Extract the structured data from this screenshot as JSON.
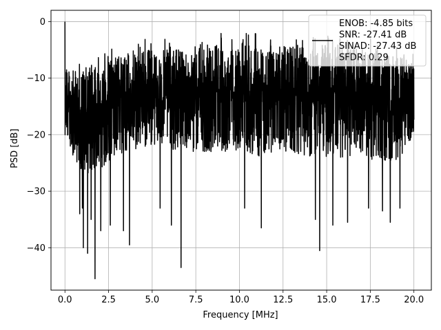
{
  "chart_data": {
    "type": "line",
    "xlabel": "Frequency [MHz]",
    "ylabel": "PSD [dB]",
    "xlim": [
      -0.8,
      21.0
    ],
    "ylim": [
      -47.5,
      2.0
    ],
    "x_ticks": [
      0.0,
      2.5,
      5.0,
      7.5,
      10.0,
      12.5,
      15.0,
      17.5,
      20.0
    ],
    "x_tick_labels": [
      "0.0",
      "2.5",
      "5.0",
      "7.5",
      "10.0",
      "12.5",
      "15.0",
      "17.5",
      "20.0"
    ],
    "y_ticks": [
      0,
      -10,
      -20,
      -30,
      -40
    ],
    "y_tick_labels": [
      "0",
      "−10",
      "−20",
      "−30",
      "−40"
    ],
    "grid": true,
    "legend_position": "top-right",
    "legend_entries": [
      "ENOB: -4.85 bits",
      "SNR: -27.41 dB",
      "SINAD: -27.43 dB",
      "SFDR: 0.29"
    ],
    "series": [
      {
        "color": "#000000",
        "x_start": 0.0,
        "x_end": 20.0,
        "band_upper": [
          [
            0.0,
            0.0
          ],
          [
            0.15,
            -6
          ],
          [
            0.4,
            -7
          ],
          [
            0.8,
            -7
          ],
          [
            1.2,
            -6
          ],
          [
            1.6,
            -6
          ],
          [
            2.0,
            -6
          ],
          [
            2.5,
            -5
          ],
          [
            3.0,
            -4
          ],
          [
            3.5,
            -4
          ],
          [
            4.0,
            -3
          ],
          [
            5.0,
            -3
          ],
          [
            6.0,
            -3
          ],
          [
            7.0,
            -3
          ],
          [
            8.0,
            -2
          ],
          [
            9.0,
            -2
          ],
          [
            10.0,
            -2
          ],
          [
            11.0,
            -2
          ],
          [
            12.0,
            -2
          ],
          [
            13.0,
            -2
          ],
          [
            14.0,
            -2
          ],
          [
            15.0,
            -2
          ],
          [
            16.0,
            -2
          ],
          [
            17.0,
            -3
          ],
          [
            18.0,
            -3
          ],
          [
            19.0,
            -4
          ],
          [
            20.0,
            -5
          ]
        ],
        "band_lower": [
          [
            0.0,
            -20
          ],
          [
            0.5,
            -24
          ],
          [
            1.0,
            -27
          ],
          [
            1.5,
            -27
          ],
          [
            2.0,
            -26
          ],
          [
            2.5,
            -25
          ],
          [
            3.0,
            -24
          ],
          [
            4.0,
            -23
          ],
          [
            5.0,
            -22
          ],
          [
            6.0,
            -23
          ],
          [
            7.0,
            -23
          ],
          [
            8.0,
            -23
          ],
          [
            9.0,
            -23
          ],
          [
            10.0,
            -23
          ],
          [
            11.0,
            -24
          ],
          [
            12.0,
            -23
          ],
          [
            13.0,
            -23
          ],
          [
            14.0,
            -24
          ],
          [
            15.0,
            -24
          ],
          [
            16.0,
            -24
          ],
          [
            17.0,
            -24
          ],
          [
            18.0,
            -25
          ],
          [
            19.0,
            -25
          ],
          [
            20.0,
            -20
          ]
        ],
        "deep_nulls": [
          [
            0.85,
            -34
          ],
          [
            1.0,
            -33
          ],
          [
            1.05,
            -40
          ],
          [
            1.3,
            -41
          ],
          [
            1.5,
            -35
          ],
          [
            1.72,
            -45.5
          ],
          [
            2.05,
            -37
          ],
          [
            2.6,
            -36
          ],
          [
            3.35,
            -37
          ],
          [
            3.7,
            -39.5
          ],
          [
            5.45,
            -33
          ],
          [
            6.1,
            -36
          ],
          [
            6.65,
            -43.5
          ],
          [
            10.3,
            -33
          ],
          [
            11.25,
            -36.5
          ],
          [
            14.35,
            -35
          ],
          [
            14.6,
            -40.5
          ],
          [
            15.35,
            -36
          ],
          [
            16.2,
            -35.5
          ],
          [
            17.4,
            -33
          ],
          [
            18.2,
            -33.5
          ],
          [
            18.65,
            -35.5
          ],
          [
            19.2,
            -33
          ]
        ]
      }
    ]
  }
}
